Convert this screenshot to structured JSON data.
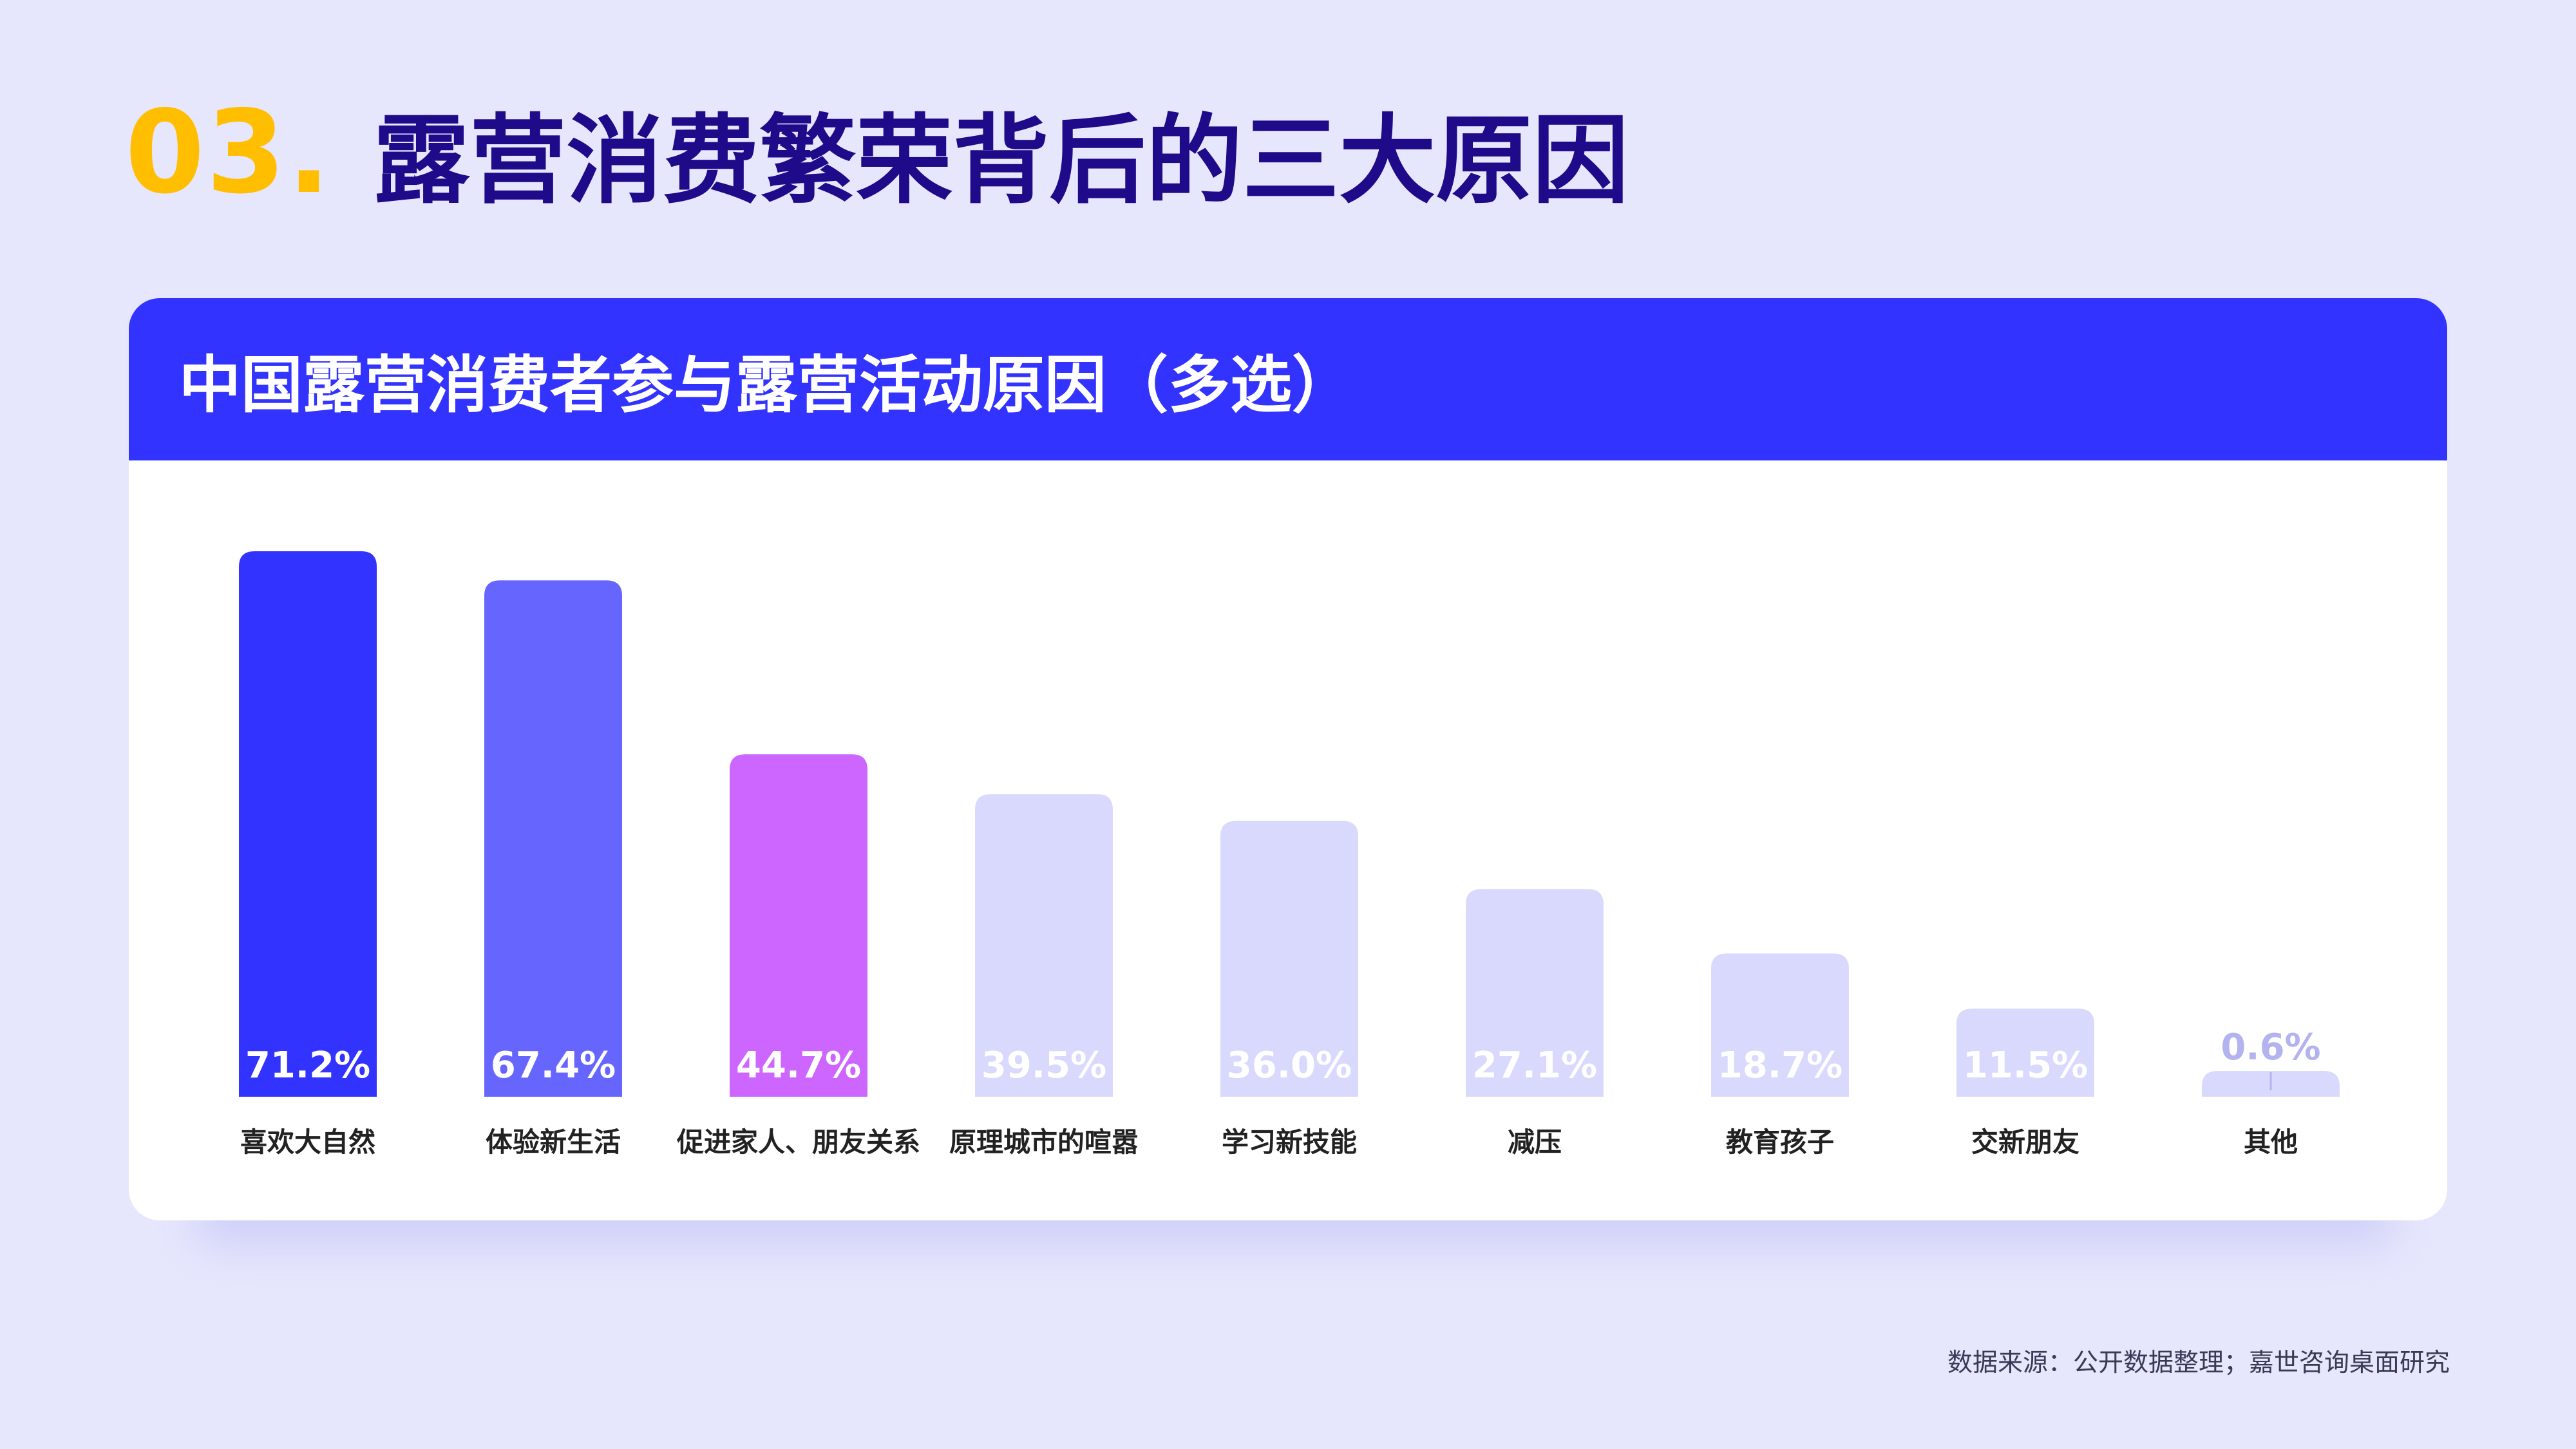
{
  "heading": {
    "number": "03.",
    "title": "露营消费繁荣背后的三大原因"
  },
  "card": {
    "title": "中国露营消费者参与露营活动原因（多选）"
  },
  "footer": {
    "source": "数据来源：公开数据整理；嘉世咨询桌面研究"
  },
  "colors": {
    "background": "#e6e6fd",
    "accent_number": "#ffbf00",
    "heading": "#1f0a8a",
    "header_bar": "#3333ff",
    "bar_top1": "#3333ff",
    "bar_top2": "#6666ff",
    "bar_top3": "#cc66ff",
    "bar_rest": "#d9d9fd",
    "label_on_light": "#ffffff",
    "label_on_faint": "#b3b3ef"
  },
  "chart_data": {
    "type": "bar",
    "categories": [
      "喜欢大自然",
      "体验新生活",
      "促进家人、朋友关系",
      "原理城市的喧嚣",
      "学习新技能",
      "减压",
      "教育孩子",
      "交新朋友",
      "其他"
    ],
    "values": [
      71.2,
      67.4,
      44.7,
      39.5,
      36.0,
      27.1,
      18.7,
      11.5,
      0.6
    ],
    "value_labels": [
      "71.2%",
      "67.4%",
      "44.7%",
      "39.5%",
      "36.0%",
      "27.1%",
      "18.7%",
      "11.5%",
      "0.6%"
    ],
    "unit": "%",
    "ylim": [
      0,
      71.2
    ],
    "grid": false,
    "legend": "none"
  }
}
